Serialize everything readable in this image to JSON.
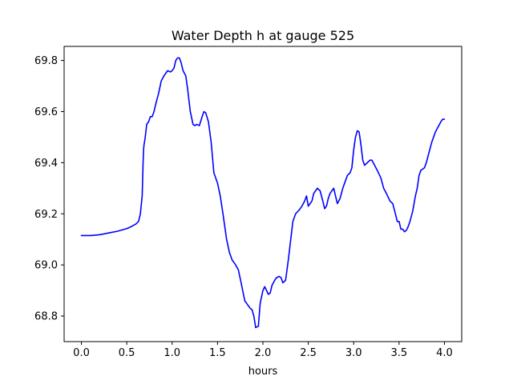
{
  "chart_data": {
    "type": "line",
    "title": "Water Depth h at gauge 525",
    "xlabel": "hours",
    "ylabel": "",
    "xlim": [
      -0.19,
      4.19
    ],
    "ylim": [
      68.7,
      69.855
    ],
    "xticks": [
      0.0,
      0.5,
      1.0,
      1.5,
      2.0,
      2.5,
      3.0,
      3.5,
      4.0
    ],
    "xtick_labels": [
      "0.0",
      "0.5",
      "1.0",
      "1.5",
      "2.0",
      "2.5",
      "3.0",
      "3.5",
      "4.0"
    ],
    "yticks": [
      68.8,
      69.0,
      69.2,
      69.4,
      69.6,
      69.8
    ],
    "ytick_labels": [
      "68.8",
      "69.0",
      "69.2",
      "69.4",
      "69.6",
      "69.8"
    ],
    "grid": false,
    "series": [
      {
        "color": "#0000ff",
        "x": [
          0.0,
          0.1,
          0.2,
          0.3,
          0.4,
          0.5,
          0.55,
          0.6,
          0.63,
          0.65,
          0.67,
          0.68,
          0.685,
          0.69,
          0.7,
          0.72,
          0.74,
          0.76,
          0.78,
          0.8,
          0.82,
          0.85,
          0.88,
          0.91,
          0.95,
          0.98,
          1.0,
          1.02,
          1.04,
          1.06,
          1.08,
          1.1,
          1.12,
          1.15,
          1.17,
          1.2,
          1.23,
          1.25,
          1.27,
          1.3,
          1.33,
          1.35,
          1.37,
          1.4,
          1.43,
          1.46,
          1.5,
          1.53,
          1.56,
          1.6,
          1.63,
          1.66,
          1.7,
          1.73,
          1.76,
          1.8,
          1.83,
          1.86,
          1.88,
          1.9,
          1.92,
          1.95,
          1.97,
          2.0,
          2.02,
          2.04,
          2.06,
          2.08,
          2.1,
          2.13,
          2.15,
          2.18,
          2.2,
          2.22,
          2.25,
          2.28,
          2.3,
          2.33,
          2.36,
          2.4,
          2.43,
          2.46,
          2.48,
          2.5,
          2.52,
          2.54,
          2.56,
          2.58,
          2.6,
          2.63,
          2.66,
          2.68,
          2.7,
          2.72,
          2.74,
          2.76,
          2.78,
          2.8,
          2.82,
          2.85,
          2.88,
          2.9,
          2.93,
          2.96,
          2.98,
          3.0,
          3.02,
          3.04,
          3.06,
          3.08,
          3.1,
          3.12,
          3.15,
          3.18,
          3.2,
          3.23,
          3.26,
          3.3,
          3.33,
          3.36,
          3.4,
          3.43,
          3.46,
          3.48,
          3.5,
          3.52,
          3.54,
          3.56,
          3.58,
          3.6,
          3.62,
          3.65,
          3.68,
          3.7,
          3.72,
          3.74,
          3.76,
          3.78,
          3.8,
          3.83,
          3.86,
          3.9,
          3.93,
          3.96,
          3.98,
          4.0
        ],
        "values": [
          69.115,
          69.115,
          69.118,
          69.125,
          69.132,
          69.142,
          69.15,
          69.16,
          69.17,
          69.2,
          69.27,
          69.4,
          69.45,
          69.47,
          69.49,
          69.55,
          69.56,
          69.58,
          69.58,
          69.6,
          69.63,
          69.67,
          69.72,
          69.74,
          69.76,
          69.755,
          69.76,
          69.77,
          69.8,
          69.81,
          69.81,
          69.79,
          69.76,
          69.74,
          69.69,
          69.6,
          69.55,
          69.545,
          69.55,
          69.545,
          69.58,
          69.6,
          69.595,
          69.56,
          69.48,
          69.36,
          69.32,
          69.27,
          69.2,
          69.1,
          69.05,
          69.02,
          69.0,
          68.98,
          68.93,
          68.86,
          68.845,
          68.83,
          68.825,
          68.8,
          68.755,
          68.76,
          68.85,
          68.9,
          68.915,
          68.9,
          68.885,
          68.89,
          68.92,
          68.94,
          68.95,
          68.955,
          68.95,
          68.93,
          68.94,
          69.02,
          69.08,
          69.17,
          69.2,
          69.215,
          69.23,
          69.25,
          69.27,
          69.23,
          69.24,
          69.25,
          69.28,
          69.29,
          69.3,
          69.29,
          69.25,
          69.22,
          69.23,
          69.26,
          69.28,
          69.29,
          69.3,
          69.27,
          69.24,
          69.26,
          69.3,
          69.32,
          69.35,
          69.36,
          69.38,
          69.45,
          69.5,
          69.525,
          69.52,
          69.47,
          69.41,
          69.39,
          69.4,
          69.41,
          69.41,
          69.39,
          69.37,
          69.34,
          69.3,
          69.28,
          69.25,
          69.24,
          69.2,
          69.17,
          69.17,
          69.14,
          69.14,
          69.13,
          69.135,
          69.15,
          69.17,
          69.21,
          69.27,
          69.3,
          69.35,
          69.37,
          69.375,
          69.38,
          69.4,
          69.44,
          69.48,
          69.52,
          69.54,
          69.56,
          69.57,
          69.57
        ]
      }
    ]
  }
}
